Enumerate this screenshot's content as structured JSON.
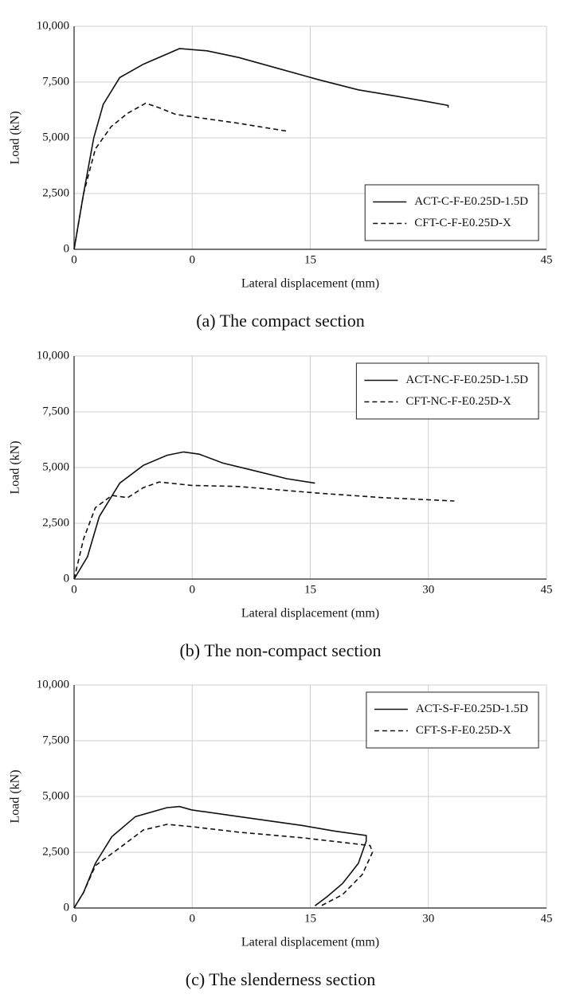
{
  "chart_data": [
    {
      "type": "line",
      "caption": "(a) The compact section",
      "xlabel": "Lateral displacement (mm)",
      "ylabel": "Load (kN)",
      "xlim": [
        0,
        60
      ],
      "ylim": [
        0,
        10000
      ],
      "xticks": [
        0,
        {
          "value": 15,
          "label": "0"
        },
        {
          "value": 30,
          "label": "15"
        },
        {
          "value": 60,
          "label": "45"
        }
      ],
      "yticks": [
        0,
        {
          "value": 2500,
          "label": "2,500"
        },
        {
          "value": 5000,
          "label": "5,000"
        },
        {
          "value": 7500,
          "label": "7,500"
        },
        {
          "value": 10000,
          "label": "10,000"
        }
      ],
      "grid": true,
      "legend": "lower right",
      "series": [
        {
          "name": "ACT-C-F-E0.25D-1.5D",
          "color": "#111111",
          "linestyle": "solid",
          "x": [
            0,
            1.2,
            2.5,
            3.7,
            5.8,
            8.8,
            13.4,
            16.9,
            20.9,
            26.0,
            31.1,
            36.1,
            41.2,
            45.2,
            47.5,
            47.5
          ],
          "values": [
            0,
            2500,
            5000,
            6500,
            7700,
            8300,
            9000,
            8900,
            8600,
            8100,
            7600,
            7150,
            6850,
            6600,
            6450,
            6350
          ]
        },
        {
          "name": "CFT-C-F-E0.25D-X",
          "color": "#111111",
          "linestyle": "dashed",
          "x": [
            0,
            1.2,
            2.7,
            4.7,
            6.8,
            9.1,
            10.8,
            12.9,
            16.9,
            20.9,
            27.0
          ],
          "values": [
            0,
            2500,
            4500,
            5500,
            6100,
            6550,
            6350,
            6050,
            5850,
            5650,
            5300
          ]
        }
      ]
    },
    {
      "type": "line",
      "caption": "(b) The non-compact section",
      "xlabel": "Lateral displacement (mm)",
      "ylabel": "Load (kN)",
      "xlim": [
        0,
        60
      ],
      "ylim": [
        0,
        10000
      ],
      "xticks": [
        0,
        {
          "value": 15,
          "label": "0"
        },
        {
          "value": 30,
          "label": "15"
        },
        {
          "value": 45,
          "label": "30"
        },
        {
          "value": 60,
          "label": "45"
        }
      ],
      "yticks": [
        0,
        {
          "value": 2500,
          "label": "2,500"
        },
        {
          "value": 5000,
          "label": "5,000"
        },
        {
          "value": 7500,
          "label": "7,500"
        },
        {
          "value": 10000,
          "label": "10,000"
        }
      ],
      "grid": true,
      "legend": "upper right",
      "series": [
        {
          "name": "ACT-NC-F-E0.25D-1.5D",
          "color": "#111111",
          "linestyle": "solid",
          "x": [
            0,
            1.7,
            3.2,
            5.8,
            8.8,
            11.8,
            13.9,
            15.9,
            18.9,
            23.0,
            27.0,
            30.6
          ],
          "values": [
            0,
            1000,
            2800,
            4300,
            5100,
            5550,
            5700,
            5600,
            5200,
            4850,
            4500,
            4300
          ]
        },
        {
          "name": "CFT-NC-F-E0.25D-X",
          "color": "#111111",
          "linestyle": "dashed",
          "x": [
            0,
            1.2,
            2.7,
            4.8,
            6.8,
            8.8,
            10.8,
            14.9,
            20.9,
            31.1,
            39.2,
            48.3
          ],
          "values": [
            0,
            1800,
            3200,
            3750,
            3650,
            4100,
            4350,
            4200,
            4150,
            3850,
            3650,
            3500
          ]
        }
      ]
    },
    {
      "type": "line",
      "caption": "(c) The slenderness section",
      "xlabel": "Lateral displacement (mm)",
      "ylabel": "Load (kN)",
      "xlim": [
        0,
        60
      ],
      "ylim": [
        0,
        10000
      ],
      "xticks": [
        0,
        {
          "value": 15,
          "label": "0"
        },
        {
          "value": 30,
          "label": "15"
        },
        {
          "value": 45,
          "label": "30"
        },
        {
          "value": 60,
          "label": "45"
        }
      ],
      "yticks": [
        0,
        {
          "value": 2500,
          "label": "2,500"
        },
        {
          "value": 5000,
          "label": "5,000"
        },
        {
          "value": 7500,
          "label": "7,500"
        },
        {
          "value": 10000,
          "label": "10,000"
        }
      ],
      "grid": true,
      "legend": "upper right",
      "series": [
        {
          "name": "ACT-S-F-E0.25D-1.5D",
          "color": "#111111",
          "linestyle": "solid",
          "x": [
            0,
            1.2,
            2.7,
            4.8,
            7.8,
            11.8,
            13.4,
            14.9,
            20.9,
            29.0,
            33.1,
            37.1,
            37.1,
            36.1,
            34.1,
            32.1,
            30.6
          ],
          "values": [
            0,
            700,
            2000,
            3200,
            4100,
            4500,
            4550,
            4400,
            4100,
            3700,
            3450,
            3250,
            3000,
            2000,
            1100,
            500,
            100
          ]
        },
        {
          "name": "CFT-S-F-E0.25D-X",
          "color": "#111111",
          "linestyle": "dashed",
          "x": [
            0,
            1.2,
            2.7,
            5.8,
            8.8,
            11.8,
            14.9,
            20.9,
            29.0,
            37.6,
            37.9,
            36.6,
            34.1,
            31.1
          ],
          "values": [
            0,
            700,
            1900,
            2700,
            3500,
            3750,
            3650,
            3400,
            3150,
            2800,
            2500,
            1500,
            600,
            50
          ]
        }
      ]
    }
  ]
}
